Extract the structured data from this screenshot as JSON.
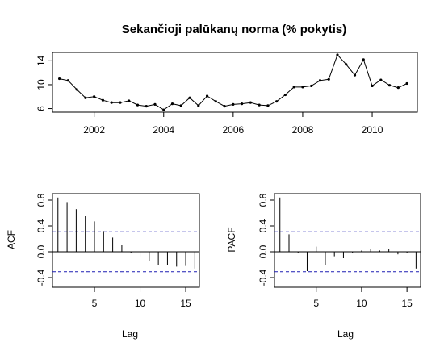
{
  "chart_data": [
    {
      "type": "line",
      "title": "Sekančioji palūkanų norma (% pokytis)",
      "xlabel": "",
      "ylabel": "",
      "xlim": [
        2000.8,
        2011.3
      ],
      "ylim": [
        5.4,
        15.4
      ],
      "x_ticks": [
        2002,
        2004,
        2006,
        2008,
        2010
      ],
      "x_tick_labels": [
        "2002",
        "2004",
        "2006",
        "2008",
        "2010"
      ],
      "y_ticks": [
        6,
        10,
        14
      ],
      "y_tick_labels": [
        "6",
        "10",
        "14"
      ],
      "points": "markers",
      "x": [
        2001.0,
        2001.25,
        2001.5,
        2001.75,
        2002.0,
        2002.25,
        2002.5,
        2002.75,
        2003.0,
        2003.25,
        2003.5,
        2003.75,
        2004.0,
        2004.25,
        2004.5,
        2004.75,
        2005.0,
        2005.25,
        2005.5,
        2005.75,
        2006.0,
        2006.25,
        2006.5,
        2006.75,
        2007.0,
        2007.25,
        2007.5,
        2007.75,
        2008.0,
        2008.25,
        2008.5,
        2008.75,
        2009.0,
        2009.25,
        2009.5,
        2009.75,
        2010.0,
        2010.25,
        2010.5,
        2010.75,
        2011.0
      ],
      "y": [
        11.0,
        10.7,
        9.2,
        7.8,
        8.0,
        7.4,
        7.0,
        7.0,
        7.3,
        6.6,
        6.4,
        6.7,
        5.8,
        6.8,
        6.5,
        7.8,
        6.5,
        8.1,
        7.2,
        6.4,
        6.7,
        6.8,
        7.0,
        6.6,
        6.5,
        7.2,
        8.3,
        9.6,
        9.6,
        9.8,
        10.7,
        10.9,
        15.0,
        13.4,
        11.6,
        14.2,
        9.8,
        10.8,
        9.9,
        9.5,
        10.2
      ],
      "grid": false,
      "legend": "none"
    },
    {
      "type": "bar",
      "title": "",
      "xlabel": "Lag",
      "ylabel": "ACF",
      "xlim": [
        0.4,
        16.5
      ],
      "ylim": [
        -0.55,
        0.9
      ],
      "x_ticks": [
        5,
        10,
        15
      ],
      "x_tick_labels": [
        "5",
        "10",
        "15"
      ],
      "y_ticks": [
        -0.4,
        0.0,
        0.4,
        0.8
      ],
      "y_tick_labels": [
        "-0.4",
        "0.0",
        "0.4",
        "0.8"
      ],
      "lags": [
        1,
        2,
        3,
        4,
        5,
        6,
        7,
        8,
        9,
        10,
        11,
        12,
        13,
        14,
        15,
        16
      ],
      "values": [
        0.84,
        0.77,
        0.66,
        0.55,
        0.47,
        0.32,
        0.22,
        0.1,
        -0.02,
        -0.07,
        -0.15,
        -0.2,
        -0.2,
        -0.23,
        -0.22,
        -0.26
      ],
      "confidence_band": [
        -0.31,
        0.31
      ],
      "grid": false,
      "legend": "none"
    },
    {
      "type": "bar",
      "title": "",
      "xlabel": "Lag",
      "ylabel": "PACF",
      "xlim": [
        0.4,
        16.5
      ],
      "ylim": [
        -0.55,
        0.9
      ],
      "x_ticks": [
        5,
        10,
        15
      ],
      "x_tick_labels": [
        "5",
        "10",
        "15"
      ],
      "y_ticks": [
        -0.4,
        0.0,
        0.4,
        0.8
      ],
      "y_tick_labels": [
        "-0.4",
        "0.0",
        "0.4",
        "0.8"
      ],
      "lags": [
        1,
        2,
        3,
        4,
        5,
        6,
        7,
        8,
        9,
        10,
        11,
        12,
        13,
        14,
        15,
        16
      ],
      "values": [
        0.84,
        0.27,
        -0.02,
        -0.3,
        0.08,
        -0.2,
        -0.07,
        -0.1,
        -0.02,
        0.02,
        0.05,
        0.02,
        0.04,
        -0.04,
        -0.02,
        -0.26
      ],
      "confidence_band": [
        -0.31,
        0.31
      ],
      "grid": false,
      "legend": "none"
    }
  ]
}
